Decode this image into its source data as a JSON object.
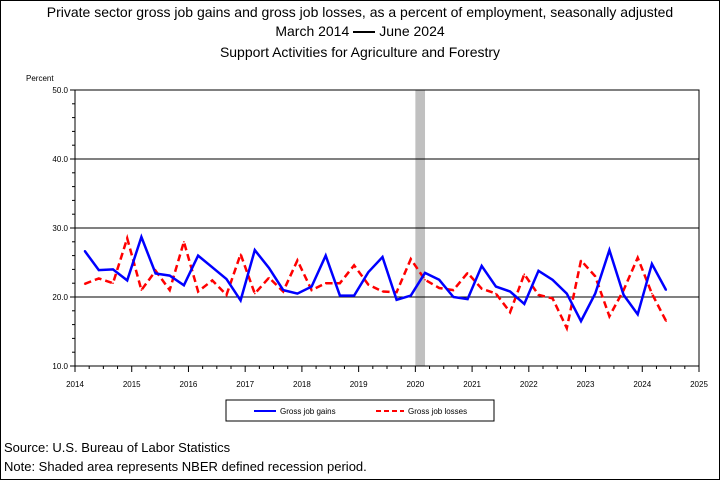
{
  "header": {
    "title_line1": "Private sector gross job gains and gross job losses, as a percent of employment, seasonally adjusted",
    "title_range_start": "March 2014",
    "title_range_end": "June 2024",
    "subtitle": "Support Activities for Agriculture and Forestry"
  },
  "footer": {
    "source": "Source: U.S. Bureau of Labor Statistics",
    "note": "Note: Shaded area represents NBER defined recession period."
  },
  "chart_data": {
    "type": "line",
    "ylabel": "Percent",
    "ylim": [
      10,
      50
    ],
    "yticks": [
      "10.0",
      "20.0",
      "30.0",
      "40.0",
      "50.0"
    ],
    "xlim": [
      2014,
      2025
    ],
    "xticks": [
      "2014",
      "2015",
      "2016",
      "2017",
      "2018",
      "2019",
      "2020",
      "2021",
      "2022",
      "2023",
      "2024",
      "2025"
    ],
    "grid": "horizontal",
    "legend_position": "bottom",
    "recession": {
      "start": 2020.0,
      "end": 2020.17
    },
    "colors": {
      "gains": "#0000ff",
      "losses": "#ff0000",
      "recession": "#c0c0c0"
    },
    "x": [
      2014.17,
      2014.42,
      2014.67,
      2014.92,
      2015.17,
      2015.42,
      2015.67,
      2015.92,
      2016.17,
      2016.42,
      2016.67,
      2016.92,
      2017.17,
      2017.42,
      2017.67,
      2017.92,
      2018.17,
      2018.42,
      2018.67,
      2018.92,
      2019.17,
      2019.42,
      2019.67,
      2019.92,
      2020.17,
      2020.42,
      2020.67,
      2020.92,
      2021.17,
      2021.42,
      2021.67,
      2021.92,
      2022.17,
      2022.42,
      2022.67,
      2022.92,
      2023.17,
      2023.42,
      2023.67,
      2023.92,
      2024.17,
      2024.42
    ],
    "series": [
      {
        "name": "Gross job gains",
        "style": "solid",
        "values": [
          26.7,
          23.9,
          24.0,
          22.4,
          28.7,
          23.4,
          23.1,
          21.7,
          26.0,
          24.3,
          22.6,
          19.5,
          26.8,
          24.2,
          21.0,
          20.5,
          21.5,
          26.0,
          20.2,
          20.2,
          23.6,
          25.8,
          19.6,
          20.2,
          23.5,
          22.5,
          20.0,
          19.7,
          24.5,
          21.5,
          20.8,
          19.0,
          23.8,
          22.5,
          20.5,
          16.5,
          20.5,
          26.8,
          20.3,
          17.5,
          24.8,
          21.0
        ]
      },
      {
        "name": "Gross job losses",
        "style": "dashed",
        "values": [
          21.9,
          22.7,
          22.0,
          28.5,
          21.0,
          23.8,
          21.0,
          28.0,
          20.8,
          22.4,
          20.3,
          26.2,
          20.5,
          22.8,
          20.8,
          25.3,
          21.0,
          22.0,
          22.0,
          24.6,
          21.8,
          20.8,
          20.7,
          25.5,
          22.5,
          21.3,
          21.0,
          23.5,
          21.2,
          20.5,
          17.8,
          23.3,
          20.3,
          19.8,
          15.5,
          25.3,
          23.0,
          17.2,
          21.0,
          25.7,
          20.5,
          16.5
        ]
      }
    ]
  }
}
